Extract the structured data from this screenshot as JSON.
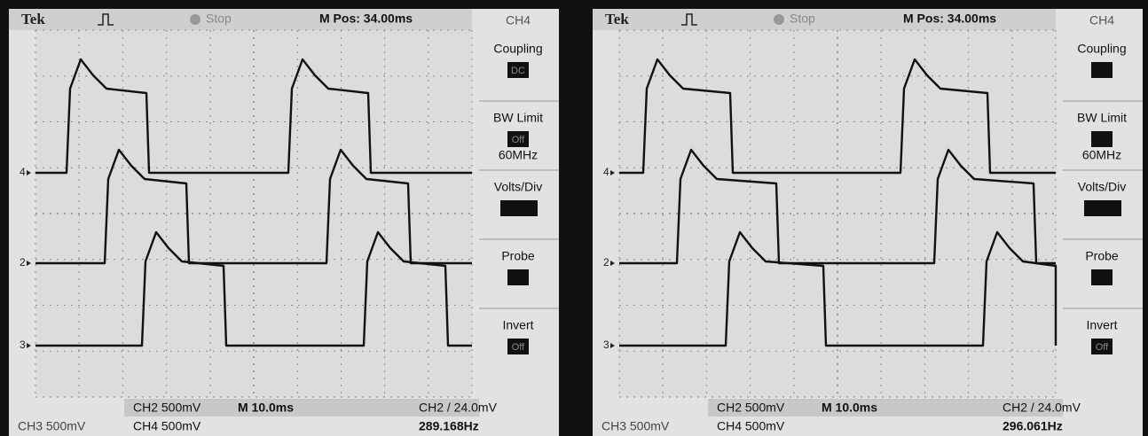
{
  "panels": [
    {
      "header": {
        "brand": "Tek",
        "status": "Stop",
        "position": "M Pos: 34.00ms"
      },
      "menu": {
        "channel": "CH4",
        "items": [
          {
            "label": "Coupling",
            "value": "DC"
          },
          {
            "label": "BW Limit",
            "value": "Off",
            "note": "60MHz"
          },
          {
            "label": "Volts/Div"
          },
          {
            "label": "Probe"
          },
          {
            "label": "Invert",
            "value": "Off"
          }
        ]
      },
      "markers": [
        "4",
        "2",
        "3"
      ],
      "footer": {
        "ch2": "CH2 500mV",
        "ch4": "CH4 500mV",
        "ch3": "CH3 500mV",
        "timebase": "M 10.0ms",
        "trigger": "CH2 / 24.0mV",
        "frequency": "289.168Hz"
      }
    },
    {
      "header": {
        "brand": "Tek",
        "status": "Stop",
        "position": "M Pos: 34.00ms"
      },
      "menu": {
        "channel": "CH4",
        "items": [
          {
            "label": "Coupling"
          },
          {
            "label": "BW Limit",
            "note": "60MHz"
          },
          {
            "label": "Volts/Div"
          },
          {
            "label": "Probe"
          },
          {
            "label": "Invert",
            "value": "Off"
          }
        ]
      },
      "markers": [
        "4",
        "2",
        "3"
      ],
      "footer": {
        "ch2": "CH2 500mV",
        "ch4": "CH4 500mV",
        "ch3": "CH3 500mV",
        "timebase": "M 10.0ms",
        "trigger": "CH2 / 24.0mV",
        "frequency": "296.061Hz"
      }
    }
  ]
}
